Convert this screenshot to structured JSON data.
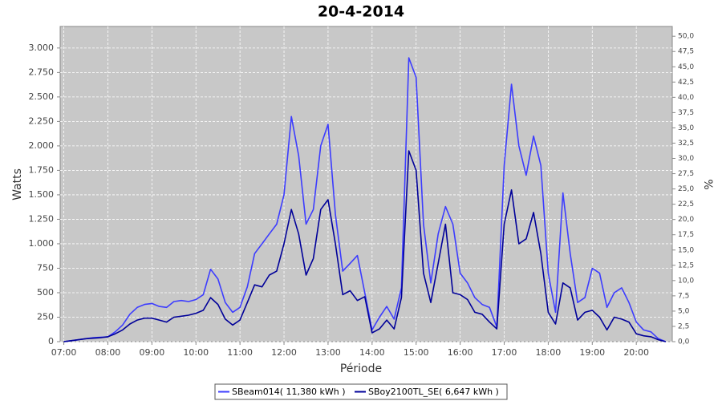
{
  "chart_data": {
    "type": "line",
    "title": "20-4-2014",
    "x_label": "Période",
    "y_label": "Watts",
    "y2_label": "%",
    "x": [
      "07:00",
      "07:10",
      "07:20",
      "07:30",
      "07:40",
      "07:50",
      "08:00",
      "08:10",
      "08:20",
      "08:30",
      "08:40",
      "08:50",
      "09:00",
      "09:10",
      "09:20",
      "09:30",
      "09:40",
      "09:50",
      "10:00",
      "10:10",
      "10:20",
      "10:30",
      "10:40",
      "10:50",
      "11:00",
      "11:10",
      "11:20",
      "11:30",
      "11:40",
      "11:50",
      "12:00",
      "12:10",
      "12:20",
      "12:30",
      "12:40",
      "12:50",
      "13:00",
      "13:10",
      "13:20",
      "13:30",
      "13:40",
      "13:50",
      "14:00",
      "14:10",
      "14:20",
      "14:30",
      "14:40",
      "14:50",
      "15:00",
      "15:10",
      "15:20",
      "15:30",
      "15:40",
      "15:50",
      "16:00",
      "16:10",
      "16:20",
      "16:30",
      "16:40",
      "16:50",
      "17:00",
      "17:10",
      "17:20",
      "17:30",
      "17:40",
      "17:50",
      "18:00",
      "18:10",
      "18:20",
      "18:30",
      "18:40",
      "18:50",
      "19:00",
      "19:10",
      "19:20",
      "19:30",
      "19:40",
      "19:50",
      "20:00",
      "20:10",
      "20:20",
      "20:30",
      "20:40"
    ],
    "series": [
      {
        "name": "SBeam014( 11,380 kWh )",
        "color": "#3c3cff",
        "values": [
          0,
          10,
          20,
          30,
          40,
          45,
          50,
          100,
          170,
          280,
          350,
          380,
          390,
          360,
          350,
          410,
          420,
          410,
          430,
          480,
          740,
          640,
          400,
          300,
          350,
          560,
          900,
          1000,
          1100,
          1200,
          1500,
          2300,
          1900,
          1200,
          1350,
          2000,
          2220,
          1300,
          720,
          800,
          880,
          500,
          120,
          250,
          360,
          230,
          550,
          2900,
          2700,
          1200,
          600,
          1100,
          1380,
          1200,
          700,
          600,
          450,
          380,
          350,
          150,
          1800,
          2630,
          2000,
          1700,
          2100,
          1800,
          700,
          300,
          1520,
          900,
          400,
          450,
          750,
          700,
          350,
          500,
          550,
          400,
          200,
          120,
          100,
          30,
          0
        ]
      },
      {
        "name": "SBoy2100TL_SE( 6,647 kWh )",
        "color": "#000099",
        "values": [
          0,
          10,
          20,
          30,
          35,
          40,
          50,
          80,
          120,
          180,
          220,
          240,
          240,
          220,
          200,
          250,
          260,
          270,
          290,
          320,
          450,
          380,
          230,
          170,
          220,
          400,
          580,
          560,
          680,
          720,
          1000,
          1350,
          1100,
          680,
          850,
          1350,
          1450,
          1000,
          480,
          520,
          420,
          460,
          90,
          130,
          220,
          130,
          450,
          1950,
          1750,
          700,
          400,
          800,
          1200,
          500,
          480,
          430,
          300,
          280,
          200,
          130,
          1200,
          1550,
          1000,
          1050,
          1320,
          900,
          300,
          180,
          600,
          550,
          220,
          300,
          320,
          250,
          120,
          250,
          230,
          200,
          80,
          60,
          50,
          20,
          0
        ]
      }
    ],
    "xlim": [
      "06:55",
      "20:49"
    ],
    "xticks": [
      "07:00",
      "08:00",
      "09:00",
      "10:00",
      "11:00",
      "12:00",
      "13:00",
      "14:00",
      "15:00",
      "16:00",
      "17:00",
      "18:00",
      "19:00",
      "20:00"
    ],
    "ylim": [
      0,
      3220
    ],
    "yticks": [
      0,
      250,
      500,
      750,
      {
        "value": 1000,
        "label": "1.000"
      },
      {
        "value": 1250,
        "label": "1.250"
      },
      {
        "value": 1500,
        "label": "1.500"
      },
      {
        "value": 1750,
        "label": "1.750"
      },
      {
        "value": 2000,
        "label": "2.000"
      },
      {
        "value": 2250,
        "label": "2.250"
      },
      {
        "value": 2500,
        "label": "2.500"
      },
      {
        "value": 2750,
        "label": "2.750"
      },
      {
        "value": 3000,
        "label": "3.000"
      }
    ],
    "y2lim": [
      0,
      51.6
    ],
    "y2ticks": [
      {
        "value": 0,
        "label": "0,0"
      },
      {
        "value": 2.5,
        "label": "2,5"
      },
      {
        "value": 5,
        "label": "5,0"
      },
      {
        "value": 7.5,
        "label": "7,5"
      },
      {
        "value": 10,
        "label": "10,0"
      },
      {
        "value": 12.5,
        "label": "12,5"
      },
      {
        "value": 15,
        "label": "15,0"
      },
      {
        "value": 17.5,
        "label": "17,5"
      },
      {
        "value": 20,
        "label": "20,0"
      },
      {
        "value": 22.5,
        "label": "22,5"
      },
      {
        "value": 25,
        "label": "25,0"
      },
      {
        "value": 27.5,
        "label": "27,5"
      },
      {
        "value": 30,
        "label": "30,0"
      },
      {
        "value": 32.5,
        "label": "32,5"
      },
      {
        "value": 35,
        "label": "35,0"
      },
      {
        "value": 37.5,
        "label": "37,5"
      },
      {
        "value": 40,
        "label": "40,0"
      },
      {
        "value": 42.5,
        "label": "42,5"
      },
      {
        "value": 45,
        "label": "45,0"
      },
      {
        "value": 47.5,
        "label": "47,5"
      },
      {
        "value": 50,
        "label": "50,0"
      }
    ],
    "grid": true,
    "legend": "bottom"
  }
}
